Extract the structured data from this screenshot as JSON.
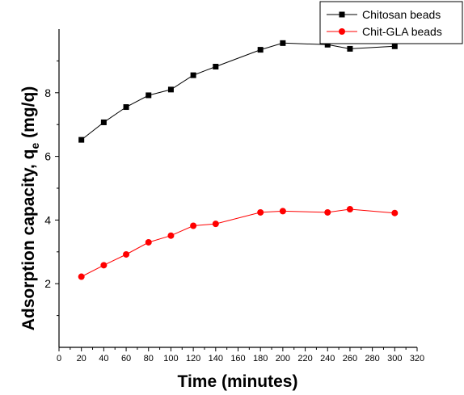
{
  "chart_data": {
    "type": "line",
    "xlabel": "Time (minutes)",
    "ylabel_main": "Adsorption capacity, q",
    "ylabel_sub": "e",
    "ylabel_unit": " (mg/q)",
    "xlim": [
      0,
      320
    ],
    "ylim": [
      0,
      10
    ],
    "xticks": [
      0,
      20,
      40,
      60,
      80,
      100,
      120,
      140,
      160,
      180,
      200,
      220,
      240,
      260,
      280,
      300,
      320
    ],
    "yticks": [
      2,
      4,
      6,
      8
    ],
    "grid": false,
    "legend_position": "top-right",
    "series": [
      {
        "name": "Chitosan beads",
        "color": "#000000",
        "marker": "square",
        "x": [
          20,
          40,
          60,
          80,
          100,
          120,
          140,
          180,
          200,
          240,
          260,
          300
        ],
        "y": [
          6.52,
          7.07,
          7.55,
          7.92,
          8.1,
          8.55,
          8.82,
          9.35,
          9.56,
          9.51,
          9.38,
          9.46
        ]
      },
      {
        "name": "Chit-GLA beads",
        "color": "#ff0000",
        "marker": "circle",
        "x": [
          20,
          40,
          60,
          80,
          100,
          120,
          140,
          180,
          200,
          240,
          260,
          300
        ],
        "y": [
          2.22,
          2.58,
          2.92,
          3.3,
          3.51,
          3.82,
          3.88,
          4.24,
          4.28,
          4.24,
          4.34,
          4.22
        ]
      }
    ]
  }
}
